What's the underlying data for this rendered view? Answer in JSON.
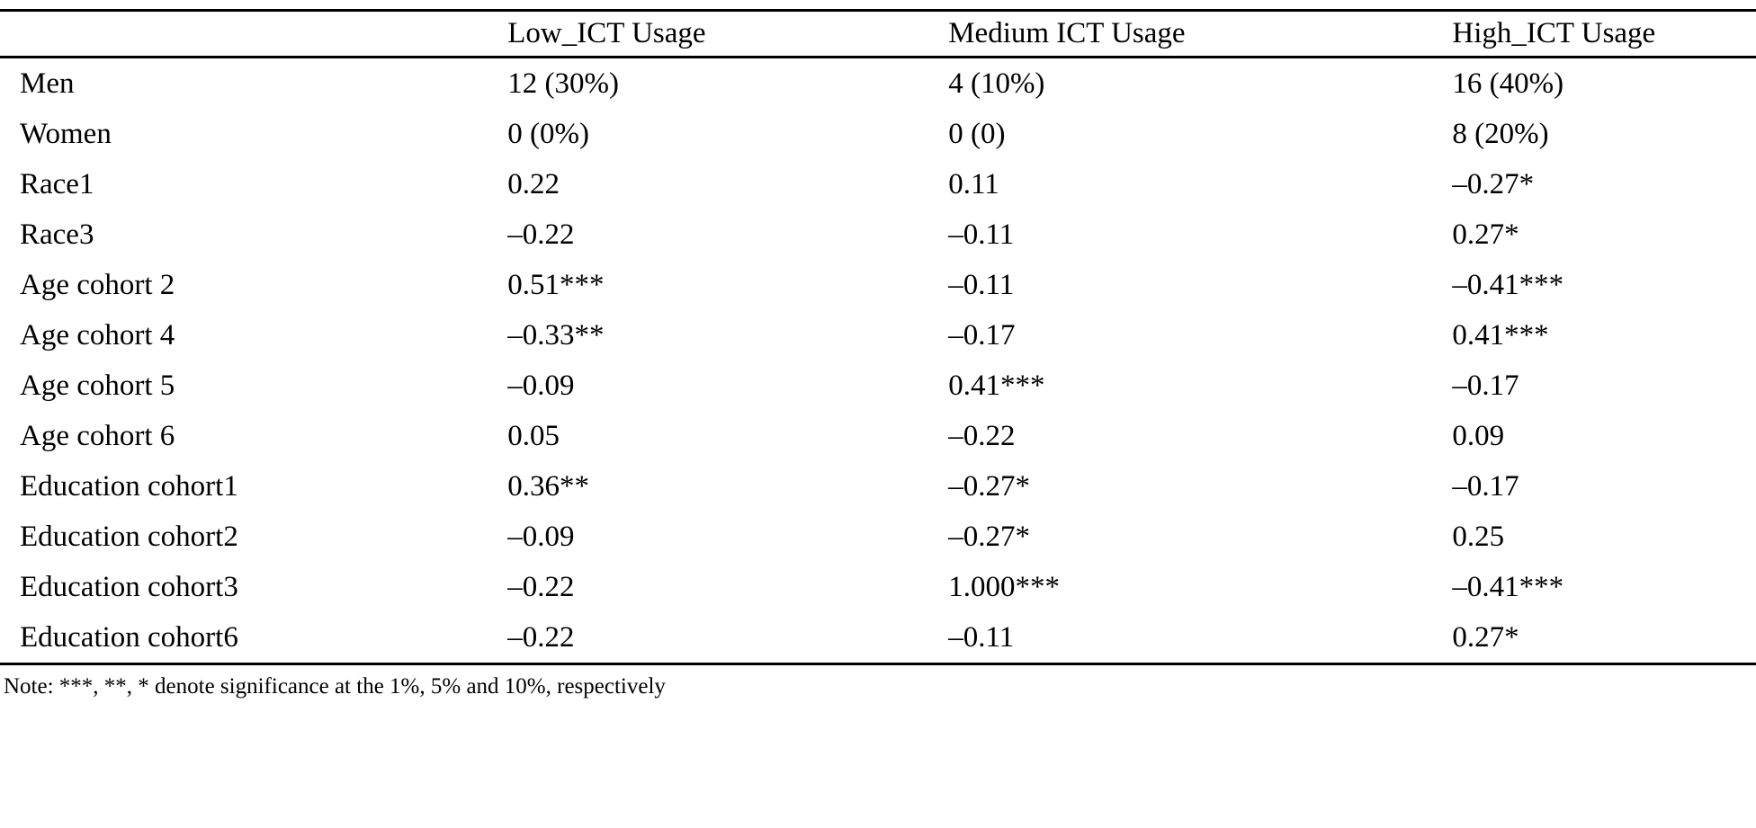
{
  "table": {
    "columns": {
      "label": "",
      "low": "Low_ICT Usage",
      "medium": "Medium ICT Usage",
      "high": "High_ICT Usage"
    },
    "rows": [
      {
        "label": "Men",
        "values": [
          "12 (30%)",
          "4 (10%)",
          "16 (40%)"
        ]
      },
      {
        "label": "Women",
        "values": [
          "0 (0%)",
          "0 (0)",
          "8 (20%)"
        ]
      },
      {
        "label": "Race1",
        "values": [
          "0.22",
          "0.11",
          "–0.27*"
        ]
      },
      {
        "label": "Race3",
        "values": [
          "–0.22",
          "–0.11",
          "0.27*"
        ]
      },
      {
        "label": "Age cohort 2",
        "values": [
          "0.51***",
          "–0.11",
          "–0.41***"
        ]
      },
      {
        "label": "Age cohort 4",
        "values": [
          "–0.33**",
          "–0.17",
          "0.41***"
        ]
      },
      {
        "label": "Age cohort 5",
        "values": [
          "–0.09",
          "0.41***",
          "–0.17"
        ]
      },
      {
        "label": "Age cohort 6",
        "values": [
          "0.05",
          "–0.22",
          "0.09"
        ]
      },
      {
        "label": "Education cohort1",
        "values": [
          "0.36**",
          "–0.27*",
          "–0.17"
        ]
      },
      {
        "label": "Education cohort2",
        "values": [
          "–0.09",
          "–0.27*",
          "0.25"
        ]
      },
      {
        "label": "Education cohort3",
        "values": [
          "–0.22",
          "1.000***",
          "–0.41***"
        ]
      },
      {
        "label": "Education cohort6",
        "values": [
          "–0.22",
          "–0.11",
          "0.27*"
        ]
      }
    ],
    "note": "Note: ***, **, * denote significance at the 1%, 5% and 10%, respectively"
  }
}
